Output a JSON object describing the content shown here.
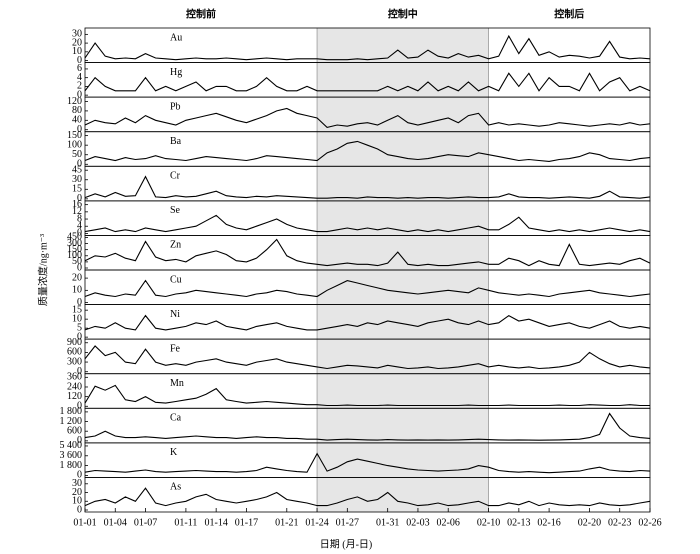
{
  "chart_data": {
    "type": "line",
    "xlabel": "日期 (月-日)",
    "ylabel": "质量浓度/ng·m⁻³",
    "x": [
      "01-01",
      "01-02",
      "01-03",
      "01-04",
      "01-05",
      "01-06",
      "01-07",
      "01-08",
      "01-09",
      "01-10",
      "01-11",
      "01-12",
      "01-13",
      "01-14",
      "01-15",
      "01-16",
      "01-17",
      "01-18",
      "01-19",
      "01-20",
      "01-21",
      "01-22",
      "01-23",
      "01-24",
      "01-25",
      "01-26",
      "01-27",
      "01-28",
      "01-29",
      "01-30",
      "01-31",
      "02-01",
      "02-02",
      "02-03",
      "02-04",
      "02-05",
      "02-06",
      "02-07",
      "02-08",
      "02-09",
      "02-10",
      "02-11",
      "02-12",
      "02-13",
      "02-14",
      "02-15",
      "02-16",
      "02-17",
      "02-18",
      "02-19",
      "02-20",
      "02-21",
      "02-22",
      "02-23",
      "02-24",
      "02-25",
      "02-26"
    ],
    "xticks": [
      "01-01",
      "01-04",
      "01-07",
      "01-11",
      "01-14",
      "01-17",
      "01-21",
      "01-24",
      "01-27",
      "01-31",
      "02-03",
      "02-06",
      "02-10",
      "02-13",
      "02-16",
      "02-20",
      "02-23",
      "02-26"
    ],
    "periods": [
      {
        "label": "控制前",
        "start": "01-01",
        "end": "01-24",
        "shaded": false
      },
      {
        "label": "控制中",
        "start": "01-24",
        "end": "02-10",
        "shaded": true
      },
      {
        "label": "控制后",
        "start": "02-10",
        "end": "02-26",
        "shaded": false
      }
    ],
    "series": [
      {
        "name": "Au",
        "color": "#000000",
        "ylim": [
          0,
          35
        ],
        "yticks": [
          0,
          10,
          20,
          30
        ],
        "values": [
          3,
          20,
          5,
          2,
          3,
          2,
          8,
          3,
          2,
          1,
          2,
          3,
          2,
          2,
          3,
          2,
          1,
          2,
          3,
          2,
          1,
          2,
          2,
          2,
          1,
          1,
          1,
          2,
          1,
          2,
          3,
          12,
          3,
          4,
          12,
          5,
          3,
          8,
          4,
          6,
          2,
          5,
          28,
          8,
          25,
          6,
          10,
          4,
          6,
          5,
          3,
          5,
          22,
          4,
          2,
          3,
          2
        ]
      },
      {
        "name": "Hg",
        "color": "#000000",
        "ylim": [
          0,
          7
        ],
        "yticks": [
          0,
          2,
          4,
          6
        ],
        "values": [
          1,
          4,
          2,
          1,
          1,
          1,
          4,
          1,
          2,
          1,
          2,
          3,
          1,
          2,
          2,
          1,
          1,
          2,
          4,
          2,
          1,
          1,
          2,
          1,
          1,
          1,
          1,
          1,
          1,
          1,
          2,
          1,
          2,
          1,
          3,
          1,
          2,
          1,
          3,
          1,
          2,
          1,
          5,
          2,
          5,
          1,
          4,
          2,
          2,
          1,
          5,
          1,
          3,
          4,
          1,
          2,
          1
        ]
      },
      {
        "name": "Pb",
        "color": "#000000",
        "ylim": [
          0,
          130
        ],
        "yticks": [
          0,
          40,
          80,
          120
        ],
        "values": [
          20,
          40,
          30,
          25,
          50,
          30,
          60,
          40,
          30,
          20,
          40,
          50,
          60,
          70,
          55,
          40,
          30,
          45,
          60,
          80,
          90,
          70,
          60,
          50,
          10,
          20,
          15,
          25,
          30,
          20,
          40,
          60,
          30,
          20,
          30,
          40,
          50,
          30,
          60,
          70,
          20,
          30,
          20,
          25,
          20,
          15,
          20,
          30,
          25,
          20,
          15,
          20,
          25,
          20,
          30,
          20,
          25
        ]
      },
      {
        "name": "Ba",
        "color": "#000000",
        "ylim": [
          0,
          160
        ],
        "yticks": [
          0,
          50,
          100,
          150
        ],
        "values": [
          20,
          40,
          30,
          20,
          35,
          25,
          30,
          45,
          30,
          25,
          20,
          30,
          40,
          35,
          30,
          25,
          20,
          30,
          45,
          40,
          35,
          30,
          25,
          20,
          60,
          80,
          110,
          120,
          100,
          80,
          50,
          40,
          30,
          25,
          30,
          40,
          50,
          45,
          40,
          60,
          50,
          40,
          30,
          20,
          25,
          20,
          15,
          25,
          30,
          40,
          60,
          50,
          30,
          25,
          20,
          30,
          35
        ]
      },
      {
        "name": "Cr",
        "color": "#000000",
        "ylim": [
          0,
          48
        ],
        "yticks": [
          0,
          15,
          30,
          45
        ],
        "values": [
          2,
          8,
          3,
          10,
          4,
          5,
          35,
          3,
          2,
          5,
          3,
          4,
          8,
          12,
          5,
          3,
          2,
          4,
          3,
          5,
          4,
          3,
          2,
          1,
          1,
          2,
          2,
          1,
          3,
          2,
          2,
          1,
          2,
          1,
          2,
          2,
          1,
          2,
          3,
          2,
          2,
          3,
          8,
          3,
          2,
          2,
          1,
          2,
          3,
          2,
          1,
          4,
          12,
          3,
          2,
          1,
          3
        ]
      },
      {
        "name": "Se",
        "color": "#000000",
        "ylim": [
          0,
          17
        ],
        "yticks": [
          0,
          4,
          8,
          12,
          16
        ],
        "values": [
          1,
          2,
          3,
          1,
          2,
          1,
          3,
          2,
          1,
          2,
          3,
          4,
          7,
          10,
          5,
          3,
          2,
          4,
          6,
          8,
          5,
          3,
          2,
          1,
          1,
          2,
          3,
          2,
          3,
          2,
          3,
          2,
          1,
          2,
          1,
          2,
          1,
          2,
          3,
          4,
          2,
          2,
          5,
          9,
          3,
          2,
          1,
          2,
          1,
          2,
          1,
          2,
          3,
          2,
          1,
          2,
          1
        ]
      },
      {
        "name": "Zn",
        "color": "#000000",
        "ylim": [
          0,
          450
        ],
        "yscale": "ticks",
        "yticks": [
          0,
          50,
          100,
          150,
          300,
          450
        ],
        "values": [
          60,
          100,
          90,
          120,
          80,
          60,
          350,
          90,
          60,
          70,
          50,
          100,
          120,
          140,
          110,
          60,
          50,
          80,
          150,
          400,
          100,
          60,
          40,
          30,
          20,
          30,
          40,
          30,
          30,
          20,
          40,
          130,
          30,
          20,
          30,
          20,
          20,
          30,
          40,
          50,
          30,
          30,
          80,
          60,
          20,
          60,
          30,
          20,
          280,
          30,
          20,
          30,
          40,
          30,
          60,
          80,
          40
        ]
      },
      {
        "name": "Cu",
        "color": "#000000",
        "ylim": [
          0,
          25
        ],
        "yticks": [
          0,
          10,
          20
        ],
        "values": [
          5,
          8,
          6,
          5,
          7,
          6,
          18,
          6,
          5,
          7,
          8,
          10,
          9,
          8,
          7,
          6,
          5,
          7,
          8,
          10,
          9,
          7,
          6,
          5,
          10,
          14,
          18,
          16,
          14,
          12,
          10,
          9,
          8,
          7,
          8,
          9,
          10,
          9,
          8,
          12,
          10,
          8,
          7,
          6,
          7,
          6,
          5,
          7,
          8,
          9,
          10,
          8,
          7,
          6,
          5,
          6,
          7
        ]
      },
      {
        "name": "Ni",
        "color": "#000000",
        "ylim": [
          0,
          17
        ],
        "yticks": [
          0,
          5,
          10,
          15
        ],
        "values": [
          4,
          6,
          5,
          8,
          5,
          4,
          12,
          5,
          4,
          5,
          6,
          8,
          7,
          9,
          6,
          5,
          4,
          6,
          7,
          8,
          6,
          5,
          4,
          4,
          5,
          6,
          7,
          6,
          8,
          7,
          9,
          8,
          7,
          6,
          8,
          9,
          10,
          8,
          7,
          9,
          7,
          8,
          12,
          9,
          10,
          8,
          6,
          7,
          8,
          6,
          5,
          7,
          9,
          6,
          5,
          6,
          5
        ]
      },
      {
        "name": "Fe",
        "color": "#000000",
        "ylim": [
          0,
          950
        ],
        "yticks": [
          0,
          300,
          600,
          900
        ],
        "values": [
          400,
          800,
          500,
          600,
          300,
          250,
          700,
          300,
          200,
          250,
          200,
          300,
          350,
          400,
          300,
          250,
          200,
          300,
          350,
          400,
          300,
          250,
          200,
          150,
          100,
          150,
          200,
          180,
          150,
          120,
          200,
          150,
          100,
          120,
          150,
          100,
          120,
          150,
          200,
          250,
          150,
          200,
          150,
          120,
          150,
          100,
          120,
          150,
          200,
          300,
          600,
          400,
          250,
          150,
          200,
          150,
          120
        ]
      },
      {
        "name": "Mn",
        "color": "#000000",
        "ylim": [
          0,
          380
        ],
        "yticks": [
          0,
          120,
          240,
          360
        ],
        "values": [
          40,
          250,
          200,
          260,
          80,
          60,
          120,
          50,
          40,
          60,
          80,
          100,
          150,
          220,
          80,
          60,
          40,
          50,
          60,
          50,
          40,
          30,
          20,
          20,
          10,
          10,
          15,
          10,
          10,
          10,
          15,
          10,
          10,
          10,
          10,
          10,
          10,
          10,
          15,
          10,
          10,
          10,
          15,
          10,
          10,
          10,
          10,
          15,
          10,
          10,
          20,
          15,
          10,
          10,
          20,
          10,
          10
        ]
      },
      {
        "name": "Ca",
        "color": "#000000",
        "ylim": [
          0,
          1900
        ],
        "yticks": [
          0,
          600,
          {
            "value": 1200,
            "label": "1 200"
          },
          {
            "value": 1800,
            "label": "1 800"
          }
        ],
        "values": [
          200,
          300,
          600,
          300,
          200,
          200,
          250,
          200,
          150,
          200,
          250,
          300,
          250,
          200,
          200,
          150,
          200,
          250,
          200,
          200,
          150,
          150,
          100,
          100,
          50,
          80,
          100,
          80,
          60,
          50,
          80,
          60,
          50,
          60,
          50,
          60,
          50,
          60,
          80,
          100,
          80,
          60,
          50,
          60,
          50,
          40,
          50,
          60,
          80,
          100,
          200,
          400,
          1700,
          800,
          300,
          200,
          150
        ]
      },
      {
        "name": "K",
        "color": "#000000",
        "ylim": [
          0,
          5600
        ],
        "yticks": [
          0,
          {
            "value": 1800,
            "label": "1 800"
          },
          {
            "value": 3600,
            "label": "3 600"
          },
          {
            "value": 5400,
            "label": "5 400"
          }
        ],
        "values": [
          600,
          900,
          800,
          700,
          600,
          800,
          1000,
          700,
          600,
          700,
          800,
          900,
          800,
          700,
          700,
          600,
          700,
          900,
          1500,
          1200,
          900,
          700,
          600,
          4000,
          800,
          1500,
          2500,
          3000,
          2600,
          2200,
          1800,
          1500,
          1200,
          1000,
          900,
          800,
          900,
          1000,
          1200,
          1800,
          1500,
          900,
          700,
          600,
          700,
          600,
          500,
          600,
          700,
          800,
          1200,
          1500,
          1000,
          800,
          700,
          900,
          800
        ]
      },
      {
        "name": "As",
        "color": "#000000",
        "ylim": [
          0,
          35
        ],
        "yticks": [
          0,
          10,
          20,
          30
        ],
        "values": [
          5,
          10,
          12,
          8,
          15,
          10,
          25,
          8,
          5,
          8,
          10,
          15,
          18,
          12,
          10,
          8,
          10,
          12,
          15,
          20,
          12,
          10,
          8,
          5,
          5,
          8,
          12,
          15,
          10,
          12,
          20,
          10,
          8,
          5,
          6,
          8,
          5,
          6,
          8,
          10,
          5,
          5,
          8,
          6,
          10,
          5,
          8,
          6,
          5,
          6,
          5,
          8,
          6,
          5,
          6,
          8,
          10
        ]
      }
    ]
  }
}
